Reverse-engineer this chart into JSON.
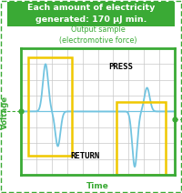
{
  "title_box_text": "Each amount of electricity\ngenerated: 170 μJ min.",
  "subtitle_text": "Output sample\n(electromotive force)",
  "xlabel": "Time",
  "ylabel": "Voltage",
  "press_label": "PRESS",
  "return_label": "RETURN",
  "bg_color": "#ffffff",
  "title_box_color": "#3aaa35",
  "title_text_color": "#ffffff",
  "subtitle_color": "#3aaa35",
  "axis_label_color": "#3aaa35",
  "plot_bg_color": "#ffffff",
  "grid_color": "#c8c8c8",
  "waveform_color": "#72c4e0",
  "border_color": "#3aaa35",
  "highlight_box_color": "#f0c800",
  "dashed_color": "#3aaa35",
  "dot_color": "#3aaa35",
  "press_return_color": "#000000",
  "figsize": [
    2.0,
    2.12
  ],
  "dpi": 100
}
